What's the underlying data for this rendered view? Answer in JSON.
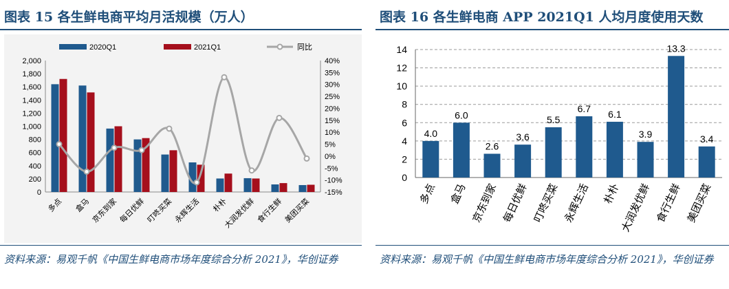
{
  "left": {
    "title": "图表 15   各生鲜电商平均月活规模（万人）",
    "source": "资料来源：易观千帆《中国生鲜电商市场年度综合分析 2021》，华创证券"
  },
  "right": {
    "title": "图表 16   各生鲜电商 APP 2021Q1 人均月度使用天数",
    "source": "资料来源：易观千帆《中国生鲜电商市场年度综合分析 2021》，华创证券"
  },
  "colors": {
    "q2020": "#1f5a8e",
    "q2021": "#a50f1c",
    "yoy": "#a6a6a6",
    "bar16": "#1f5a8e",
    "accent": "#1f4e79"
  },
  "chart_data": [
    {
      "type": "bar",
      "categories": [
        "多点",
        "盒马",
        "京东到家",
        "每日优鲜",
        "叮咚买菜",
        "永辉生活",
        "朴朴",
        "大润发优鲜",
        "食行生鲜",
        "美团买菜"
      ],
      "series": [
        {
          "name": "2020Q1",
          "values": [
            1640,
            1620,
            965,
            800,
            570,
            450,
            205,
            210,
            115,
            105
          ]
        },
        {
          "name": "2021Q1",
          "values": [
            1720,
            1515,
            1000,
            820,
            635,
            415,
            280,
            205,
            135,
            110
          ]
        },
        {
          "name": "同比",
          "type": "line",
          "axis": "right",
          "values": [
            5,
            -6.5,
            3.5,
            2.5,
            11.5,
            -11,
            33,
            -6,
            16,
            -1
          ]
        }
      ],
      "yticks": [
        "0",
        "200",
        "400",
        "600",
        "800",
        "1,000",
        "1,200",
        "1,400",
        "1,600",
        "1,800",
        "2,000"
      ],
      "y2ticks": [
        "-15%",
        "-10%",
        "-5%",
        "0%",
        "5%",
        "10%",
        "15%",
        "20%",
        "25%",
        "30%",
        "35%",
        "40%"
      ],
      "ylim": [
        0,
        2000
      ],
      "y2lim": [
        -15,
        40
      ],
      "legend": "top"
    },
    {
      "type": "bar",
      "categories": [
        "多点",
        "盒马",
        "京东到家",
        "每日优鲜",
        "叮咚买菜",
        "永辉生活",
        "朴朴",
        "大润发优鲜",
        "食行生鲜",
        "美团买菜"
      ],
      "values": [
        4.0,
        6.0,
        2.6,
        3.6,
        5.5,
        6.7,
        6.1,
        3.9,
        13.3,
        3.4
      ],
      "labels": [
        "4.0",
        "6.0",
        "2.6",
        "3.6",
        "5.5",
        "6.7",
        "6.1",
        "3.9",
        "13.3",
        "3.4"
      ],
      "yticks": [
        "0",
        "2",
        "4",
        "6",
        "8",
        "10",
        "12",
        "14"
      ],
      "ylim": [
        0,
        14
      ]
    }
  ]
}
